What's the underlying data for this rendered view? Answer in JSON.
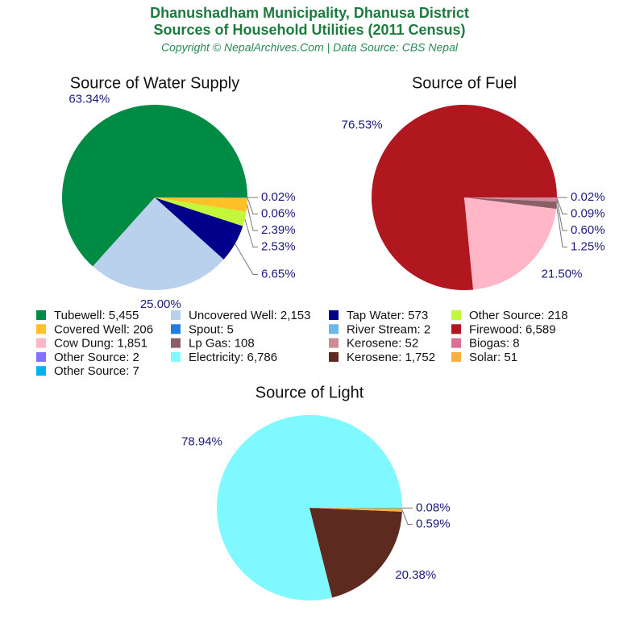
{
  "header": {
    "title": "Dhanushadham Municipality, Dhanusa District",
    "subtitle": "Sources of Household Utilities (2011 Census)",
    "source": "Copyright © NepalArchives.Com | Data Source: CBS Nepal"
  },
  "chart_data": [
    {
      "type": "pie",
      "title": "Source of Water Supply",
      "categories": [
        "Tubewell: 5,455",
        "Uncovered Well: 2,153",
        "Tap Water: 573",
        "Other Source: 218",
        "Covered Well: 206",
        "Spout: 5",
        "River Stream: 2"
      ],
      "values": [
        63.34,
        25.0,
        6.65,
        2.53,
        2.39,
        0.06,
        0.02
      ],
      "value_labels": [
        "63.34%",
        "25.00%",
        "6.65%",
        "2.53%",
        "2.39%",
        "0.06%",
        "0.02%"
      ],
      "colors": [
        "#008b45",
        "#b9d1ec",
        "#00008b",
        "#c2f73c",
        "#ffc125",
        "#1e7fe0",
        "#6cb6ee"
      ]
    },
    {
      "type": "pie",
      "title": "Source of Fuel",
      "categories": [
        "Firewood: 6,589",
        "Cow Dung: 1,851",
        "Lp Gas: 108",
        "Kerosene: 52",
        "Biogas: 8",
        "Other Source: 2"
      ],
      "values": [
        76.53,
        21.5,
        1.25,
        0.6,
        0.09,
        0.02
      ],
      "value_labels": [
        "76.53%",
        "21.50%",
        "1.25%",
        "0.60%",
        "0.09%",
        "0.02%"
      ],
      "colors": [
        "#b0171f",
        "#ffb6c6",
        "#8b5f65",
        "#cd8c95",
        "#db7093",
        "#8470ff"
      ]
    },
    {
      "type": "pie",
      "title": "Source of Light",
      "categories": [
        "Electricity: 6,786",
        "Kerosene: 1,752",
        "Solar: 51",
        "Other Source: 7"
      ],
      "values": [
        78.94,
        20.38,
        0.59,
        0.08
      ],
      "value_labels": [
        "78.94%",
        "20.38%",
        "0.59%",
        "0.08%"
      ],
      "colors": [
        "#7ff9ff",
        "#5c2a1e",
        "#f5b041",
        "#00b2ee"
      ]
    }
  ]
}
